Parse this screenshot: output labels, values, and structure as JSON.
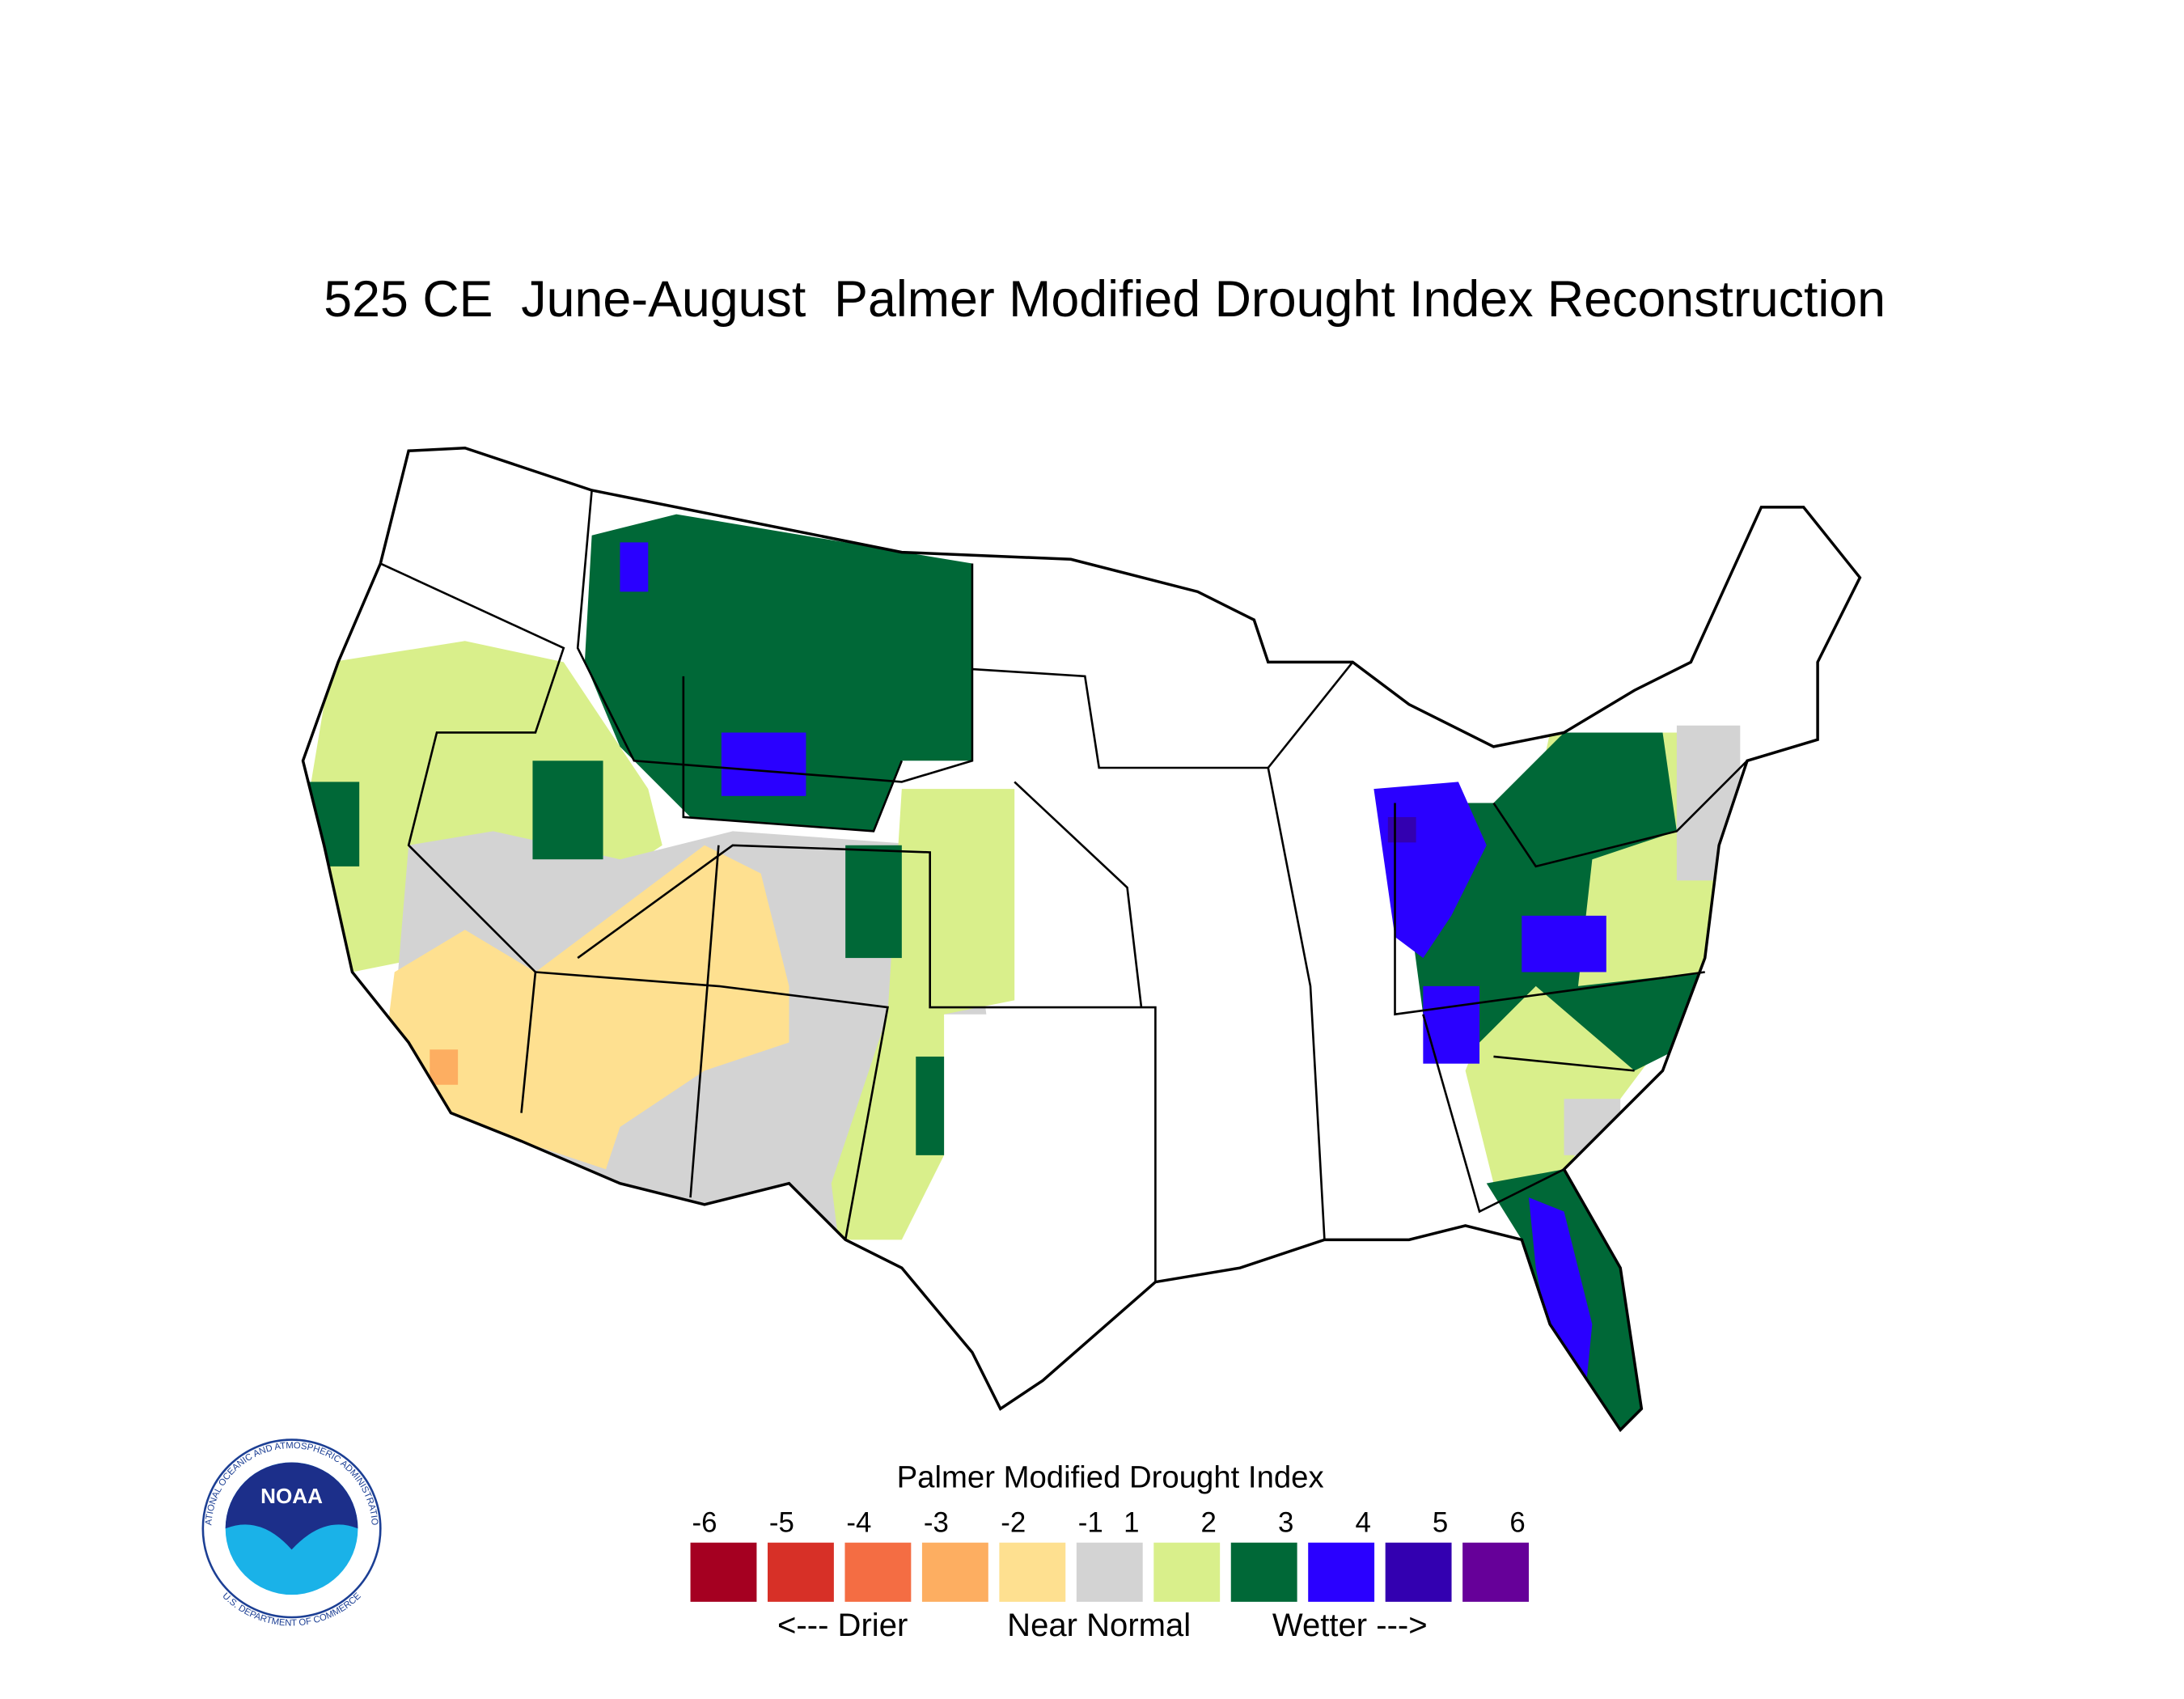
{
  "title": "525 CE  June-August  Palmer Modified Drought Index Reconstruction",
  "legend": {
    "title": "Palmer Modified Drought Index",
    "ticks": [
      -6,
      -5,
      -4,
      -3,
      -2,
      -1,
      1,
      2,
      3,
      4,
      5,
      6
    ],
    "colors": [
      "#a50021",
      "#d73027",
      "#f46d43",
      "#fdae61",
      "#fee090",
      "#d3d3d3",
      "#d9ef8b",
      "#006837",
      "#2a00ff",
      "#3300b0",
      "#660099"
    ],
    "captions": [
      "<--- Drier",
      "Near Normal",
      "Wetter --->"
    ]
  },
  "logo": {
    "label": "NOAA",
    "ring_top": "NATIONAL OCEANIC AND ATMOSPHERIC ADMINISTRATION",
    "ring_bottom": "U.S. DEPARTMENT OF COMMERCE"
  }
}
